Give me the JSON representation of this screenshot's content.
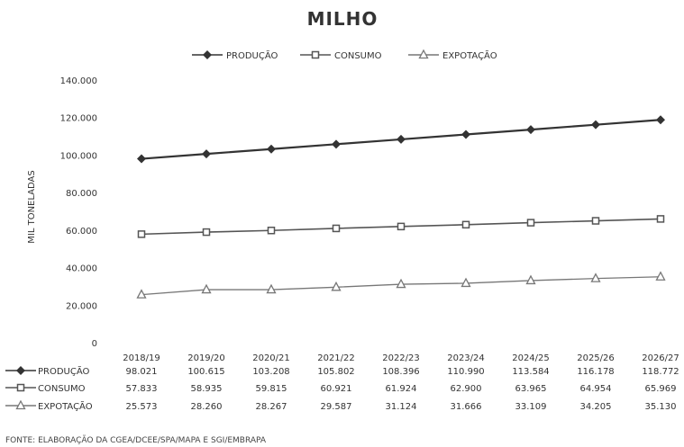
{
  "chart_data": {
    "type": "line",
    "title": "MILHO",
    "ylabel": "MIL TONELADAS",
    "xlabel": "",
    "ylim": [
      0,
      140000
    ],
    "yticks": [
      "0",
      "20.000",
      "40.000",
      "60.000",
      "80.000",
      "100.000",
      "120.000",
      "140.000"
    ],
    "grid": false,
    "legend": "top",
    "categories": [
      "2018/19",
      "2019/20",
      "2020/21",
      "2021/22",
      "2022/23",
      "2023/24",
      "2024/25",
      "2025/26",
      "2026/27"
    ],
    "series": [
      {
        "name": "PRODUÇÃO",
        "marker": "diamond",
        "color": "#333333",
        "values": [
          98021,
          100615,
          103208,
          105802,
          108396,
          110990,
          113584,
          116178,
          118772
        ],
        "labels": [
          "98.021",
          "100.615",
          "103.208",
          "105.802",
          "108.396",
          "110.990",
          "113.584",
          "116.178",
          "118.772"
        ]
      },
      {
        "name": "CONSUMO",
        "marker": "square",
        "color": "#555555",
        "values": [
          57833,
          58935,
          59815,
          60921,
          61924,
          62900,
          63965,
          64954,
          65969
        ],
        "labels": [
          "57.833",
          "58.935",
          "59.815",
          "60.921",
          "61.924",
          "62.900",
          "63.965",
          "64.954",
          "65.969"
        ]
      },
      {
        "name": "EXPOTAÇÃO",
        "marker": "triangle",
        "color": "#777777",
        "values": [
          25573,
          28260,
          28267,
          29587,
          31124,
          31666,
          33109,
          34205,
          35130
        ],
        "labels": [
          "25.573",
          "28.260",
          "28.267",
          "29.587",
          "31.124",
          "31.666",
          "33.109",
          "34.205",
          "35.130"
        ]
      }
    ]
  },
  "footer": {
    "source": "FONTE: ELABORAÇÃO DA CGEA/DCEE/SPA/MAPA E SGI/EMBRAPA"
  }
}
